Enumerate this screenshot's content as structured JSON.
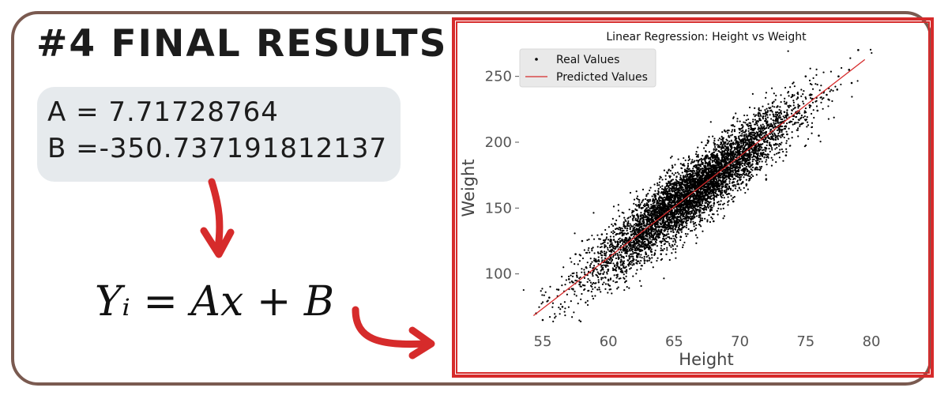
{
  "header": {
    "title": "#4 FINAL RESULTS"
  },
  "coefficients": {
    "a_text": "A = 7.71728764",
    "b_text": "B =-350.737191812137",
    "A": 7.71728764,
    "B": -350.737191812137
  },
  "formula": {
    "text": "Yᵢ = Ax + B"
  },
  "colors": {
    "frame": "#7a5a50",
    "accent": "#d62b2b",
    "coef_box": "#e6eaed",
    "points": "#000000",
    "line": "#d62b2b"
  },
  "chart_data": {
    "type": "scatter",
    "title": "Linear Regression: Height vs Weight",
    "xlabel": "Height",
    "ylabel": "Weight",
    "xlim": [
      53.5,
      81.5
    ],
    "ylim": [
      62,
      272
    ],
    "xticks": [
      55,
      60,
      65,
      70,
      75,
      80
    ],
    "yticks": [
      100,
      150,
      200,
      250
    ],
    "grid": false,
    "legend_position": "top-left",
    "series": [
      {
        "name": "Real Values",
        "kind": "scatter",
        "description": "approx. 10000 points concentrated along the regression line, heights ~54–79, weights ~65–270",
        "points": [
          [
            54.5,
            70
          ],
          [
            55.5,
            82
          ],
          [
            56.2,
            88
          ],
          [
            57.0,
            96
          ],
          [
            57.8,
            92
          ],
          [
            58.3,
            105
          ],
          [
            59.0,
            110
          ],
          [
            59.6,
            100
          ],
          [
            60.2,
            118
          ],
          [
            60.8,
            112
          ],
          [
            61.4,
            125
          ],
          [
            62.0,
            130
          ],
          [
            62.5,
            118
          ],
          [
            63.0,
            140
          ],
          [
            63.4,
            128
          ],
          [
            63.9,
            145
          ],
          [
            64.3,
            135
          ],
          [
            64.8,
            152
          ],
          [
            65.2,
            142
          ],
          [
            65.7,
            160
          ],
          [
            66.1,
            150
          ],
          [
            66.6,
            165
          ],
          [
            67.0,
            158
          ],
          [
            67.5,
            170
          ],
          [
            68.0,
            162
          ],
          [
            68.4,
            178
          ],
          [
            68.9,
            170
          ],
          [
            69.3,
            185
          ],
          [
            69.8,
            176
          ],
          [
            70.3,
            192
          ],
          [
            70.7,
            184
          ],
          [
            71.2,
            198
          ],
          [
            71.7,
            190
          ],
          [
            72.1,
            205
          ],
          [
            72.6,
            198
          ],
          [
            73.1,
            212
          ],
          [
            73.6,
            206
          ],
          [
            74.1,
            220
          ],
          [
            74.7,
            214
          ],
          [
            75.3,
            228
          ],
          [
            75.9,
            224
          ],
          [
            76.6,
            236
          ],
          [
            77.4,
            240
          ],
          [
            78.3,
            255
          ],
          [
            79.0,
            270
          ],
          [
            58.0,
            125
          ],
          [
            60.0,
            95
          ],
          [
            62.5,
            150
          ],
          [
            64.0,
            115
          ],
          [
            66.0,
            180
          ],
          [
            68.0,
            140
          ],
          [
            70.0,
            210
          ],
          [
            72.0,
            172
          ],
          [
            74.0,
            235
          ],
          [
            76.0,
            205
          ],
          [
            77.5,
            250
          ],
          [
            56.5,
            75
          ],
          [
            59.5,
            130
          ],
          [
            61.0,
            102
          ],
          [
            63.5,
            160
          ],
          [
            65.5,
            128
          ],
          [
            67.5,
            190
          ],
          [
            69.5,
            155
          ],
          [
            71.5,
            218
          ],
          [
            73.5,
            190
          ],
          [
            75.0,
            250
          ],
          [
            55.0,
            65
          ],
          [
            78.5,
            245
          ],
          [
            57.5,
            115
          ],
          [
            66.5,
            138
          ],
          [
            70.5,
            168
          ],
          [
            60.5,
            138
          ]
        ]
      },
      {
        "name": "Predicted Values",
        "kind": "line",
        "x": [
          54.3,
          79.5
        ],
        "y": [
          68.3,
          262.8
        ]
      }
    ]
  }
}
